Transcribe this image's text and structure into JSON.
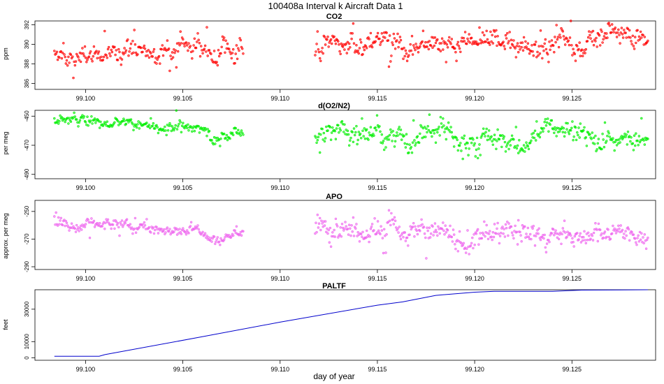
{
  "figure": {
    "title": "100408a   Interval k Aircraft Data 1",
    "xlabel": "day of year"
  },
  "chart_data": [
    {
      "type": "scatter",
      "title": "CO2",
      "ylabel": "ppm",
      "xlim": [
        99.0974,
        99.1293
      ],
      "ylim": [
        385.4,
        392.4
      ],
      "yticks": [
        386,
        388,
        390,
        392
      ],
      "xticks": [
        99.1,
        99.105,
        99.11,
        99.115,
        99.12,
        99.125
      ],
      "xtick_labels": [
        "99.100",
        "99.105",
        "99.110",
        "99.115",
        "99.120",
        "99.125"
      ],
      "marker_color": "#ff0000",
      "segments": [
        {
          "x_start": 99.0984,
          "x_end": 99.1081,
          "n": 230,
          "base_start": 389.0,
          "base_end": 389.5,
          "noise": 0.55,
          "dip_at": null,
          "dip_depth": 0
        },
        {
          "x_start": 99.1118,
          "x_end": 99.1289,
          "n": 420,
          "base_start": 389.5,
          "base_end": 390.4,
          "noise": 0.65,
          "dip_at": null,
          "dip_depth": 0
        }
      ]
    },
    {
      "type": "scatter",
      "title": "d(O2/N2)",
      "ylabel": "per meg",
      "xlim": [
        99.0974,
        99.1293
      ],
      "ylim": [
        -493,
        -446
      ],
      "yticks": [
        -490,
        -470,
        -450
      ],
      "xticks": [
        99.1,
        99.105,
        99.11,
        99.115,
        99.12,
        99.125
      ],
      "xtick_labels": [
        "99.100",
        "99.105",
        "99.110",
        "99.115",
        "99.120",
        "99.125"
      ],
      "marker_color": "#00ee00",
      "segments": [
        {
          "x_start": 99.0984,
          "x_end": 99.1081,
          "n": 230,
          "base_start": -452,
          "base_end": -460,
          "noise": 2.0,
          "dip_at": 99.1068,
          "dip_depth": 9
        },
        {
          "x_start": 99.1118,
          "x_end": 99.1289,
          "n": 420,
          "base_start": -461,
          "base_end": -466,
          "noise": 4.0,
          "dip_at": 99.1195,
          "dip_depth": 8
        }
      ]
    },
    {
      "type": "scatter",
      "title": "APO",
      "ylabel": "approx. per meg",
      "xlim": [
        99.0974,
        99.1293
      ],
      "ylim": [
        -292,
        -242
      ],
      "yticks": [
        -290,
        -270,
        -250
      ],
      "xticks": [
        99.1,
        99.105,
        99.11,
        99.115,
        99.12,
        99.125
      ],
      "xtick_labels": [
        "99.100",
        "99.105",
        "99.110",
        "99.115",
        "99.120",
        "99.125"
      ],
      "marker_color": "#ee66ee",
      "segments": [
        {
          "x_start": 99.0984,
          "x_end": 99.1081,
          "n": 230,
          "base_start": -258,
          "base_end": -264,
          "noise": 2.2,
          "dip_at": 99.1068,
          "dip_depth": 9
        },
        {
          "x_start": 99.1118,
          "x_end": 99.1289,
          "n": 420,
          "base_start": -263,
          "base_end": -268,
          "noise": 4.0,
          "dip_at": 99.1195,
          "dip_depth": 8
        }
      ]
    },
    {
      "type": "line",
      "title": "PALTF",
      "ylabel": "feet",
      "xlim": [
        99.0974,
        99.1293
      ],
      "ylim": [
        -1500,
        42000
      ],
      "yticks": [
        0,
        10000,
        30000
      ],
      "xticks": [
        99.1,
        99.105,
        99.11,
        99.115,
        99.12,
        99.125
      ],
      "xtick_labels": [
        "99.100",
        "99.105",
        "99.110",
        "99.115",
        "99.120",
        "99.125"
      ],
      "line_color": "#0000cc",
      "x": [
        99.0984,
        99.1007,
        99.101,
        99.106,
        99.11,
        99.115,
        99.1163,
        99.118,
        99.12,
        99.121,
        99.124,
        99.1255,
        99.1289
      ],
      "y": [
        1000,
        1000,
        2000,
        13000,
        22000,
        32500,
        34500,
        38500,
        40500,
        41000,
        41000,
        41800,
        42000
      ]
    }
  ]
}
